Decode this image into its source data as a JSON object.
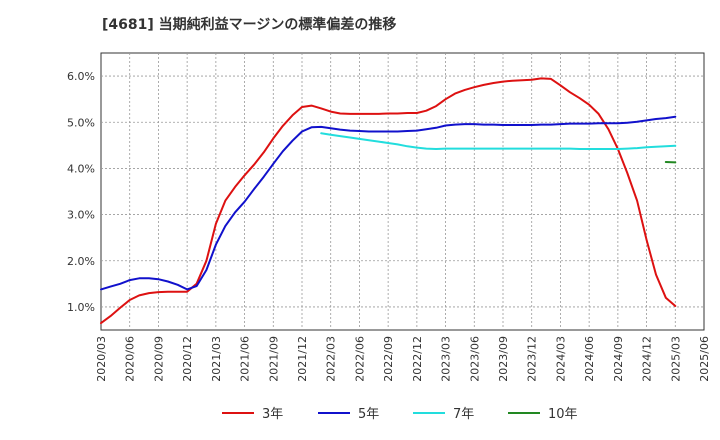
{
  "chart_data": {
    "type": "line",
    "title": "[4681]  当期純利益マージンの標準偏差の推移",
    "xlabel": "",
    "ylabel": "",
    "ylim": [
      0.5,
      6.5
    ],
    "yticks": [
      1.0,
      2.0,
      3.0,
      4.0,
      5.0,
      6.0
    ],
    "ytick_labels": [
      "1.0%",
      "2.0%",
      "3.0%",
      "4.0%",
      "5.0%",
      "6.0%"
    ],
    "x_tick_labels": [
      "2020/03",
      "2020/06",
      "2020/09",
      "2020/12",
      "2021/03",
      "2021/06",
      "2021/09",
      "2021/12",
      "2022/03",
      "2022/06",
      "2022/09",
      "2022/12",
      "2023/03",
      "2023/06",
      "2023/09",
      "2023/12",
      "2024/03",
      "2024/06",
      "2024/09",
      "2024/12",
      "2025/03",
      "2025/06"
    ],
    "grid": true,
    "legend_position": "bottom",
    "series": [
      {
        "name": "3年",
        "color": "#dd1111",
        "points": [
          [
            0.0,
            0.65
          ],
          [
            0.33,
            0.8
          ],
          [
            0.67,
            0.98
          ],
          [
            1.0,
            1.15
          ],
          [
            1.33,
            1.25
          ],
          [
            1.67,
            1.3
          ],
          [
            2.0,
            1.32
          ],
          [
            2.33,
            1.33
          ],
          [
            2.67,
            1.33
          ],
          [
            3.0,
            1.33
          ],
          [
            3.33,
            1.5
          ],
          [
            3.67,
            2.0
          ],
          [
            4.0,
            2.8
          ],
          [
            4.33,
            3.3
          ],
          [
            4.67,
            3.6
          ],
          [
            5.0,
            3.85
          ],
          [
            5.33,
            4.08
          ],
          [
            5.67,
            4.35
          ],
          [
            6.0,
            4.65
          ],
          [
            6.33,
            4.92
          ],
          [
            6.67,
            5.15
          ],
          [
            7.0,
            5.33
          ],
          [
            7.33,
            5.36
          ],
          [
            7.67,
            5.3
          ],
          [
            8.0,
            5.23
          ],
          [
            8.33,
            5.19
          ],
          [
            8.67,
            5.18
          ],
          [
            9.0,
            5.18
          ],
          [
            9.33,
            5.18
          ],
          [
            9.67,
            5.18
          ],
          [
            10.0,
            5.19
          ],
          [
            10.33,
            5.19
          ],
          [
            10.67,
            5.2
          ],
          [
            11.0,
            5.2
          ],
          [
            11.33,
            5.25
          ],
          [
            11.67,
            5.35
          ],
          [
            12.0,
            5.5
          ],
          [
            12.33,
            5.62
          ],
          [
            12.67,
            5.7
          ],
          [
            13.0,
            5.76
          ],
          [
            13.33,
            5.81
          ],
          [
            13.67,
            5.85
          ],
          [
            14.0,
            5.88
          ],
          [
            14.33,
            5.9
          ],
          [
            14.67,
            5.91
          ],
          [
            15.0,
            5.92
          ],
          [
            15.33,
            5.95
          ],
          [
            15.67,
            5.94
          ],
          [
            16.0,
            5.8
          ],
          [
            16.33,
            5.65
          ],
          [
            16.67,
            5.52
          ],
          [
            17.0,
            5.38
          ],
          [
            17.33,
            5.18
          ],
          [
            17.67,
            4.85
          ],
          [
            18.0,
            4.42
          ],
          [
            18.33,
            3.9
          ],
          [
            18.67,
            3.3
          ],
          [
            19.0,
            2.45
          ],
          [
            19.33,
            1.7
          ],
          [
            19.67,
            1.2
          ],
          [
            20.0,
            1.02
          ]
        ]
      },
      {
        "name": "5年",
        "color": "#1111cc",
        "points": [
          [
            0.0,
            1.38
          ],
          [
            0.33,
            1.44
          ],
          [
            0.67,
            1.5
          ],
          [
            1.0,
            1.58
          ],
          [
            1.33,
            1.62
          ],
          [
            1.67,
            1.62
          ],
          [
            2.0,
            1.6
          ],
          [
            2.33,
            1.55
          ],
          [
            2.67,
            1.48
          ],
          [
            3.0,
            1.38
          ],
          [
            3.33,
            1.45
          ],
          [
            3.67,
            1.8
          ],
          [
            4.0,
            2.35
          ],
          [
            4.33,
            2.75
          ],
          [
            4.67,
            3.05
          ],
          [
            5.0,
            3.28
          ],
          [
            5.33,
            3.55
          ],
          [
            5.67,
            3.82
          ],
          [
            6.0,
            4.1
          ],
          [
            6.33,
            4.37
          ],
          [
            6.67,
            4.6
          ],
          [
            7.0,
            4.8
          ],
          [
            7.33,
            4.89
          ],
          [
            7.67,
            4.9
          ],
          [
            8.0,
            4.87
          ],
          [
            8.33,
            4.84
          ],
          [
            8.67,
            4.82
          ],
          [
            9.0,
            4.81
          ],
          [
            9.33,
            4.8
          ],
          [
            9.67,
            4.8
          ],
          [
            10.0,
            4.8
          ],
          [
            10.33,
            4.8
          ],
          [
            10.67,
            4.81
          ],
          [
            11.0,
            4.82
          ],
          [
            11.33,
            4.85
          ],
          [
            11.67,
            4.88
          ],
          [
            12.0,
            4.93
          ],
          [
            12.33,
            4.95
          ],
          [
            12.67,
            4.96
          ],
          [
            13.0,
            4.96
          ],
          [
            13.33,
            4.95
          ],
          [
            13.67,
            4.95
          ],
          [
            14.0,
            4.94
          ],
          [
            14.33,
            4.94
          ],
          [
            14.67,
            4.94
          ],
          [
            15.0,
            4.94
          ],
          [
            15.33,
            4.95
          ],
          [
            15.67,
            4.95
          ],
          [
            16.0,
            4.96
          ],
          [
            16.33,
            4.97
          ],
          [
            16.67,
            4.97
          ],
          [
            17.0,
            4.97
          ],
          [
            17.33,
            4.98
          ],
          [
            17.67,
            4.98
          ],
          [
            18.0,
            4.98
          ],
          [
            18.33,
            4.99
          ],
          [
            18.67,
            5.01
          ],
          [
            19.0,
            5.04
          ],
          [
            19.33,
            5.07
          ],
          [
            19.67,
            5.09
          ],
          [
            20.0,
            5.12
          ]
        ]
      },
      {
        "name": "7年",
        "color": "#22dddd",
        "points": [
          [
            7.67,
            4.76
          ],
          [
            8.0,
            4.73
          ],
          [
            8.33,
            4.7
          ],
          [
            8.67,
            4.67
          ],
          [
            9.0,
            4.64
          ],
          [
            9.33,
            4.61
          ],
          [
            9.67,
            4.58
          ],
          [
            10.0,
            4.55
          ],
          [
            10.33,
            4.52
          ],
          [
            10.67,
            4.48
          ],
          [
            11.0,
            4.45
          ],
          [
            11.33,
            4.43
          ],
          [
            11.67,
            4.42
          ],
          [
            12.0,
            4.43
          ],
          [
            12.33,
            4.43
          ],
          [
            12.67,
            4.43
          ],
          [
            13.0,
            4.43
          ],
          [
            13.33,
            4.43
          ],
          [
            13.67,
            4.43
          ],
          [
            14.0,
            4.43
          ],
          [
            14.33,
            4.43
          ],
          [
            14.67,
            4.43
          ],
          [
            15.0,
            4.43
          ],
          [
            15.33,
            4.43
          ],
          [
            15.67,
            4.43
          ],
          [
            16.0,
            4.43
          ],
          [
            16.33,
            4.43
          ],
          [
            16.67,
            4.42
          ],
          [
            17.0,
            4.42
          ],
          [
            17.33,
            4.42
          ],
          [
            17.67,
            4.42
          ],
          [
            18.0,
            4.42
          ],
          [
            18.33,
            4.43
          ],
          [
            18.67,
            4.44
          ],
          [
            19.0,
            4.46
          ],
          [
            19.33,
            4.47
          ],
          [
            19.67,
            4.48
          ],
          [
            20.0,
            4.49
          ]
        ]
      },
      {
        "name": "10年",
        "color": "#228822",
        "points": [
          [
            19.67,
            4.14
          ],
          [
            20.0,
            4.13
          ]
        ]
      }
    ]
  }
}
